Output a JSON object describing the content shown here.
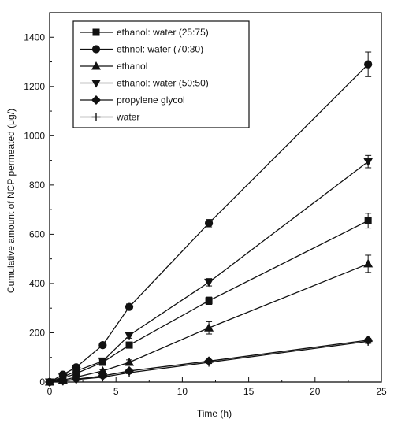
{
  "chart_data": {
    "type": "line",
    "x": [
      0,
      1,
      2,
      4,
      6,
      12,
      24
    ],
    "xlabel": "Time (h)",
    "ylabel": "Cumulative amount of NCP permeated (μg/)",
    "xlim": [
      0,
      25
    ],
    "ylim": [
      0,
      1500
    ],
    "xticks": [
      0,
      5,
      10,
      15,
      20,
      25
    ],
    "yticks": [
      0,
      200,
      400,
      600,
      800,
      1000,
      1200,
      1400
    ],
    "grid": false,
    "legend_position": "top-left",
    "series": [
      {
        "name": "ethanol: water (25:75)",
        "marker": "square",
        "values": [
          0,
          15,
          35,
          80,
          150,
          330,
          655
        ],
        "errors": [
          0,
          3,
          5,
          8,
          12,
          15,
          30
        ]
      },
      {
        "name": "ethnol: water (70:30)",
        "marker": "circle",
        "values": [
          0,
          30,
          60,
          150,
          305,
          645,
          1290
        ],
        "errors": [
          0,
          3,
          5,
          8,
          12,
          15,
          50
        ]
      },
      {
        "name": "ethanol",
        "marker": "triangle-up",
        "values": [
          0,
          8,
          20,
          45,
          80,
          220,
          480
        ],
        "errors": [
          0,
          2,
          3,
          5,
          10,
          25,
          35
        ]
      },
      {
        "name": "ethanol: water (50:50)",
        "marker": "triangle-down",
        "values": [
          0,
          20,
          45,
          85,
          190,
          405,
          895
        ],
        "errors": [
          0,
          3,
          5,
          8,
          12,
          15,
          25
        ]
      },
      {
        "name": "propylene glycol",
        "marker": "diamond",
        "values": [
          0,
          5,
          12,
          25,
          45,
          85,
          170
        ],
        "errors": [
          0,
          1,
          2,
          3,
          5,
          5,
          8
        ]
      },
      {
        "name": "water",
        "marker": "plus",
        "values": [
          0,
          4,
          10,
          20,
          38,
          80,
          165
        ],
        "errors": [
          0,
          1,
          2,
          3,
          4,
          5,
          8
        ]
      }
    ]
  }
}
